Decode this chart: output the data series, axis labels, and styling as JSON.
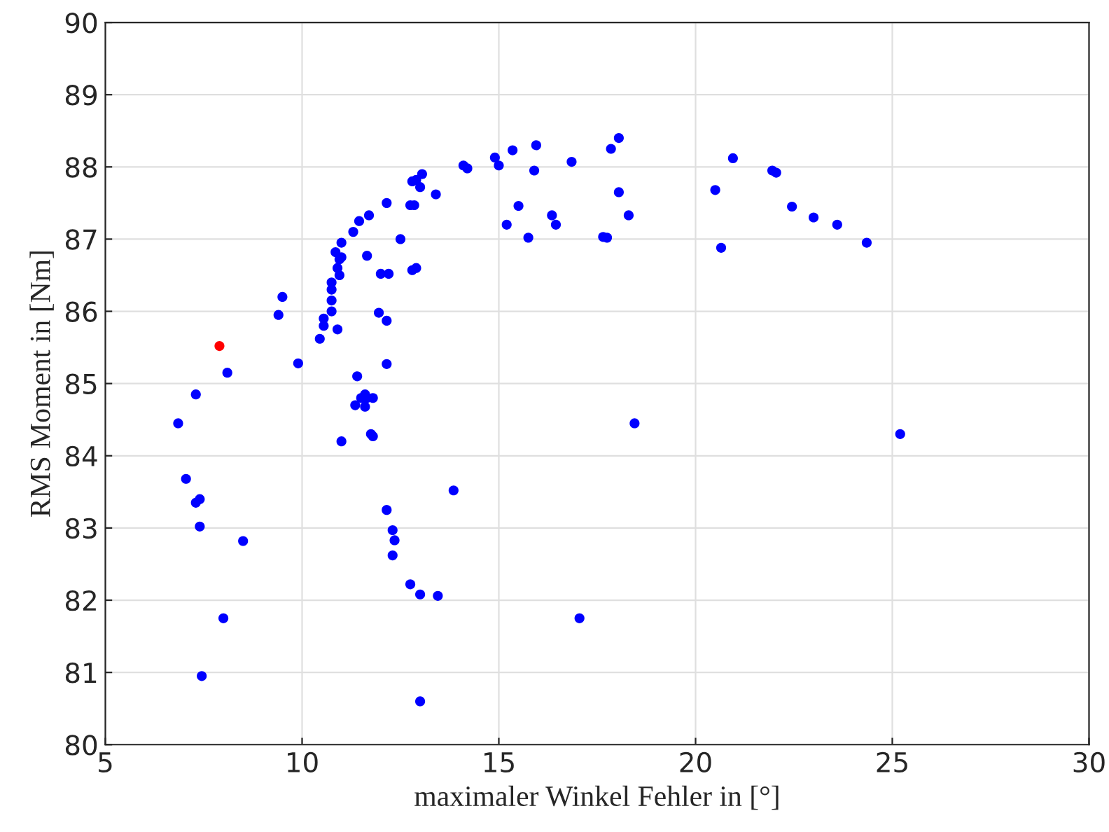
{
  "chart_data": {
    "type": "scatter",
    "xlabel": "maximaler Winkel Fehler in [°]",
    "ylabel": "RMS Moment in [Nm]",
    "xlim": [
      5,
      30
    ],
    "xticks": [
      5,
      10,
      15,
      20,
      25,
      30
    ],
    "ylim": [
      80,
      90
    ],
    "yticks": [
      80,
      81,
      82,
      83,
      84,
      85,
      86,
      87,
      88,
      89,
      90
    ],
    "grid": true,
    "marker": "circle",
    "series": [
      {
        "color": "#0000ff",
        "x": [
          6.85,
          7.05,
          7.3,
          7.3,
          7.4,
          7.4,
          7.45,
          8.0,
          8.1,
          8.5,
          9.4,
          9.5,
          9.9,
          10.45,
          10.55,
          10.55,
          10.75,
          10.75,
          10.75,
          10.75,
          10.85,
          10.9,
          10.9,
          10.95,
          10.95,
          11.0,
          11.0,
          11.0,
          11.3,
          11.4,
          11.35,
          11.45,
          11.5,
          11.6,
          11.65,
          11.6,
          11.65,
          11.7,
          11.75,
          11.8,
          11.8,
          11.95,
          12.0,
          12.15,
          12.15,
          12.15,
          12.2,
          12.15,
          12.3,
          12.35,
          12.3,
          12.5,
          12.8,
          12.75,
          12.85,
          12.8,
          12.9,
          12.9,
          13.0,
          13.05,
          12.75,
          13.0,
          13.0,
          13.45,
          13.4,
          13.85,
          14.1,
          14.2,
          14.9,
          15.0,
          15.2,
          15.35,
          15.5,
          15.75,
          15.9,
          15.95,
          16.35,
          16.45,
          16.85,
          17.05,
          17.65,
          17.75,
          17.85,
          18.05,
          18.05,
          18.3,
          18.45,
          20.5,
          20.65,
          20.95,
          21.95,
          22.05,
          22.45,
          23.0,
          23.6,
          24.35,
          25.2
        ],
        "values": [
          84.45,
          83.68,
          84.85,
          83.35,
          83.4,
          83.02,
          80.95,
          81.75,
          85.15,
          82.82,
          85.95,
          86.2,
          85.28,
          85.62,
          85.9,
          85.8,
          86.4,
          86.3,
          86.0,
          86.15,
          86.82,
          86.6,
          85.75,
          86.5,
          86.72,
          86.95,
          86.75,
          84.2,
          87.1,
          85.1,
          84.7,
          87.25,
          84.8,
          84.85,
          84.8,
          84.68,
          86.77,
          87.33,
          84.3,
          84.27,
          84.8,
          85.98,
          86.52,
          87.5,
          85.87,
          85.27,
          86.52,
          83.25,
          82.97,
          82.83,
          82.62,
          87.0,
          87.8,
          87.47,
          87.47,
          86.57,
          86.6,
          87.82,
          87.72,
          87.9,
          82.22,
          82.08,
          80.6,
          82.06,
          87.62,
          83.52,
          88.02,
          87.98,
          88.13,
          88.02,
          87.2,
          88.23,
          87.46,
          87.02,
          87.95,
          88.3,
          87.33,
          87.2,
          88.07,
          81.75,
          87.03,
          87.02,
          88.25,
          88.4,
          87.65,
          87.33,
          84.45,
          87.68,
          86.88,
          88.12,
          87.95,
          87.92,
          87.45,
          87.3,
          87.2,
          86.95,
          84.3
        ]
      },
      {
        "color": "#ff0000",
        "x": [
          7.9
        ],
        "values": [
          85.52
        ]
      }
    ]
  }
}
